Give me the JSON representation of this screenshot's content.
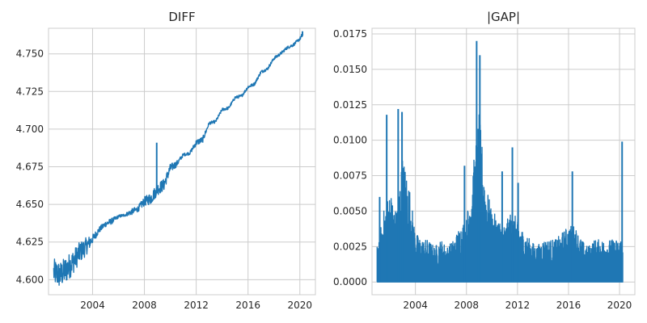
{
  "chart_data": [
    {
      "type": "line",
      "title": "DIFF",
      "xlabel": "",
      "ylabel": "",
      "xlim": [
        2000.6,
        2021.2
      ],
      "ylim": [
        4.59,
        4.767
      ],
      "x_ticks": [
        2004,
        2008,
        2012,
        2016,
        2020
      ],
      "x_tick_labels": [
        "2004",
        "2008",
        "2012",
        "2016",
        "2020"
      ],
      "y_ticks": [
        4.6,
        4.625,
        4.65,
        4.675,
        4.7,
        4.725,
        4.75
      ],
      "y_tick_labels": [
        "4.600",
        "4.625",
        "4.650",
        "4.675",
        "4.700",
        "4.725",
        "4.750"
      ],
      "grid": true,
      "color": "#1f77b4",
      "series": [
        {
          "x": [
            2001.0,
            2001.5,
            2002.0,
            2002.5,
            2003.0,
            2003.5,
            2004.0,
            2004.5,
            2005.0,
            2005.5,
            2006.0,
            2006.5,
            2007.0,
            2007.5,
            2008.0,
            2008.5,
            2009.0,
            2009.5,
            2010.0,
            2010.5,
            2011.0,
            2011.5,
            2012.0,
            2012.5,
            2013.0,
            2013.5,
            2014.0,
            2014.5,
            2015.0,
            2015.5,
            2016.0,
            2016.5,
            2017.0,
            2017.5,
            2018.0,
            2018.5,
            2019.0,
            2019.5,
            2020.0,
            2020.25
          ],
          "y": [
            4.605,
            4.603,
            4.607,
            4.612,
            4.618,
            4.622,
            4.627,
            4.633,
            4.637,
            4.639,
            4.642,
            4.643,
            4.645,
            4.647,
            4.652,
            4.654,
            4.66,
            4.663,
            4.674,
            4.677,
            4.683,
            4.684,
            4.691,
            4.693,
            4.704,
            4.705,
            4.713,
            4.714,
            4.721,
            4.722,
            4.728,
            4.73,
            4.738,
            4.74,
            4.747,
            4.75,
            4.754,
            4.756,
            4.76,
            4.763
          ]
        }
      ],
      "noise_amplitude": [
        0.009,
        0.009,
        0.009,
        0.008,
        0.007,
        0.006,
        0.003,
        0.002,
        0.002,
        0.002,
        0.001,
        0.001,
        0.002,
        0.002,
        0.003,
        0.004,
        0.004,
        0.004,
        0.003,
        0.002,
        0.001,
        0.001,
        0.002,
        0.002,
        0.001,
        0.001,
        0.001,
        0.001,
        0.001,
        0.001,
        0.001,
        0.001,
        0.001,
        0.001,
        0.001,
        0.001,
        0.001,
        0.001,
        0.001,
        0.002
      ],
      "spikes": [
        {
          "x": 2008.95,
          "y": 4.691
        },
        {
          "x": 2020.2,
          "y": 4.765
        }
      ]
    },
    {
      "type": "line",
      "title": "|GAP|",
      "xlabel": "",
      "ylabel": "",
      "xlim": [
        2000.6,
        2021.2
      ],
      "ylim": [
        -0.0009,
        0.0179
      ],
      "x_ticks": [
        2004,
        2008,
        2012,
        2016,
        2020
      ],
      "x_tick_labels": [
        "2004",
        "2008",
        "2012",
        "2016",
        "2020"
      ],
      "y_ticks": [
        0.0,
        0.0025,
        0.005,
        0.0075,
        0.01,
        0.0125,
        0.015,
        0.0175
      ],
      "y_tick_labels": [
        "0.0000",
        "0.0025",
        "0.0050",
        "0.0075",
        "0.0100",
        "0.0125",
        "0.0150",
        "0.0175"
      ],
      "grid": true,
      "color": "#1f77b4",
      "series": [
        {
          "x": [
            2001.0,
            2001.5,
            2002.0,
            2002.5,
            2003.0,
            2003.5,
            2004.0,
            2004.5,
            2005.0,
            2005.5,
            2006.0,
            2006.5,
            2007.0,
            2007.5,
            2008.0,
            2008.5,
            2009.0,
            2009.5,
            2010.0,
            2010.5,
            2011.0,
            2011.5,
            2012.0,
            2012.5,
            2013.0,
            2013.5,
            2014.0,
            2014.5,
            2015.0,
            2015.5,
            2016.0,
            2016.5,
            2017.0,
            2017.5,
            2018.0,
            2018.5,
            2019.0,
            2019.5,
            2020.0,
            2020.25
          ],
          "y": [
            0.0025,
            0.005,
            0.0065,
            0.005,
            0.009,
            0.007,
            0.0035,
            0.003,
            0.003,
            0.0025,
            0.003,
            0.0025,
            0.003,
            0.004,
            0.0045,
            0.008,
            0.012,
            0.007,
            0.005,
            0.0045,
            0.004,
            0.005,
            0.0045,
            0.0035,
            0.003,
            0.0025,
            0.003,
            0.003,
            0.003,
            0.0035,
            0.004,
            0.004,
            0.003,
            0.0025,
            0.003,
            0.003,
            0.003,
            0.003,
            0.003,
            0.0035
          ]
        }
      ],
      "spikes": [
        {
          "x": 2001.2,
          "y": 0.006
        },
        {
          "x": 2001.75,
          "y": 0.0118
        },
        {
          "x": 2002.65,
          "y": 0.0122
        },
        {
          "x": 2002.95,
          "y": 0.012
        },
        {
          "x": 2007.85,
          "y": 0.0082
        },
        {
          "x": 2008.8,
          "y": 0.017
        },
        {
          "x": 2009.05,
          "y": 0.016
        },
        {
          "x": 2010.8,
          "y": 0.0078
        },
        {
          "x": 2011.6,
          "y": 0.0095
        },
        {
          "x": 2012.05,
          "y": 0.007
        },
        {
          "x": 2016.3,
          "y": 0.0078
        },
        {
          "x": 2020.2,
          "y": 0.0099
        }
      ]
    }
  ]
}
